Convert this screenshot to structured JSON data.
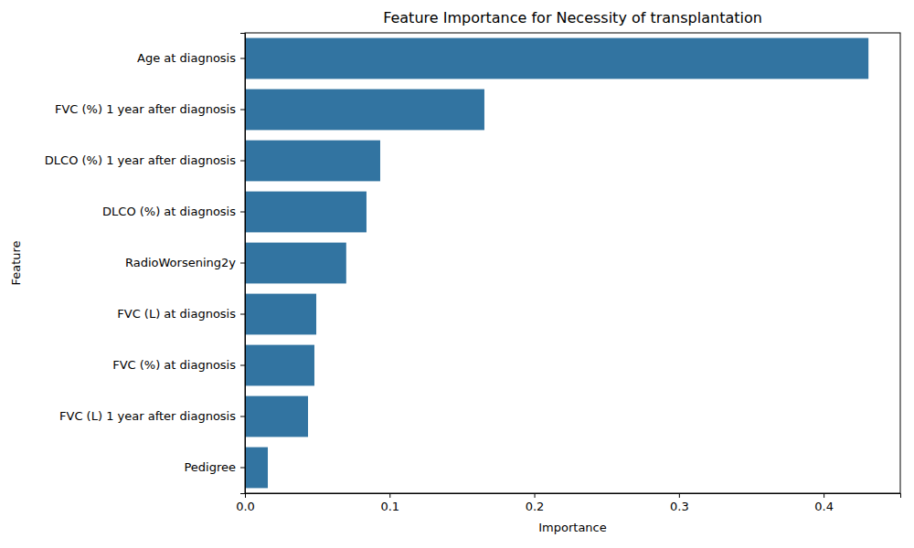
{
  "chart_data": {
    "type": "bar",
    "orientation": "horizontal",
    "title": "Feature Importance for Necessity of transplantation",
    "x_label": "Importance",
    "y_label": "Feature",
    "categories": [
      "Age at diagnosis",
      "FVC (%) 1 year after diagnosis",
      "DLCO (%) 1 year after diagnosis",
      "DLCO (%) at diagnosis",
      "RadioWorsening2y",
      "FVC (L) at diagnosis",
      "FVC (%) at diagnosis",
      "FVC (L) 1 year after diagnosis",
      "Pedigree"
    ],
    "values": [
      0.431,
      0.1655,
      0.0935,
      0.084,
      0.07,
      0.0493,
      0.048,
      0.0436,
      0.0158
    ],
    "color": "#3274a1",
    "xlim": [
      0,
      0.453
    ],
    "xticks": [
      {
        "value": 0,
        "label": "0.0"
      },
      0.1,
      0.2,
      0.3,
      0.4
    ],
    "grid": false
  }
}
